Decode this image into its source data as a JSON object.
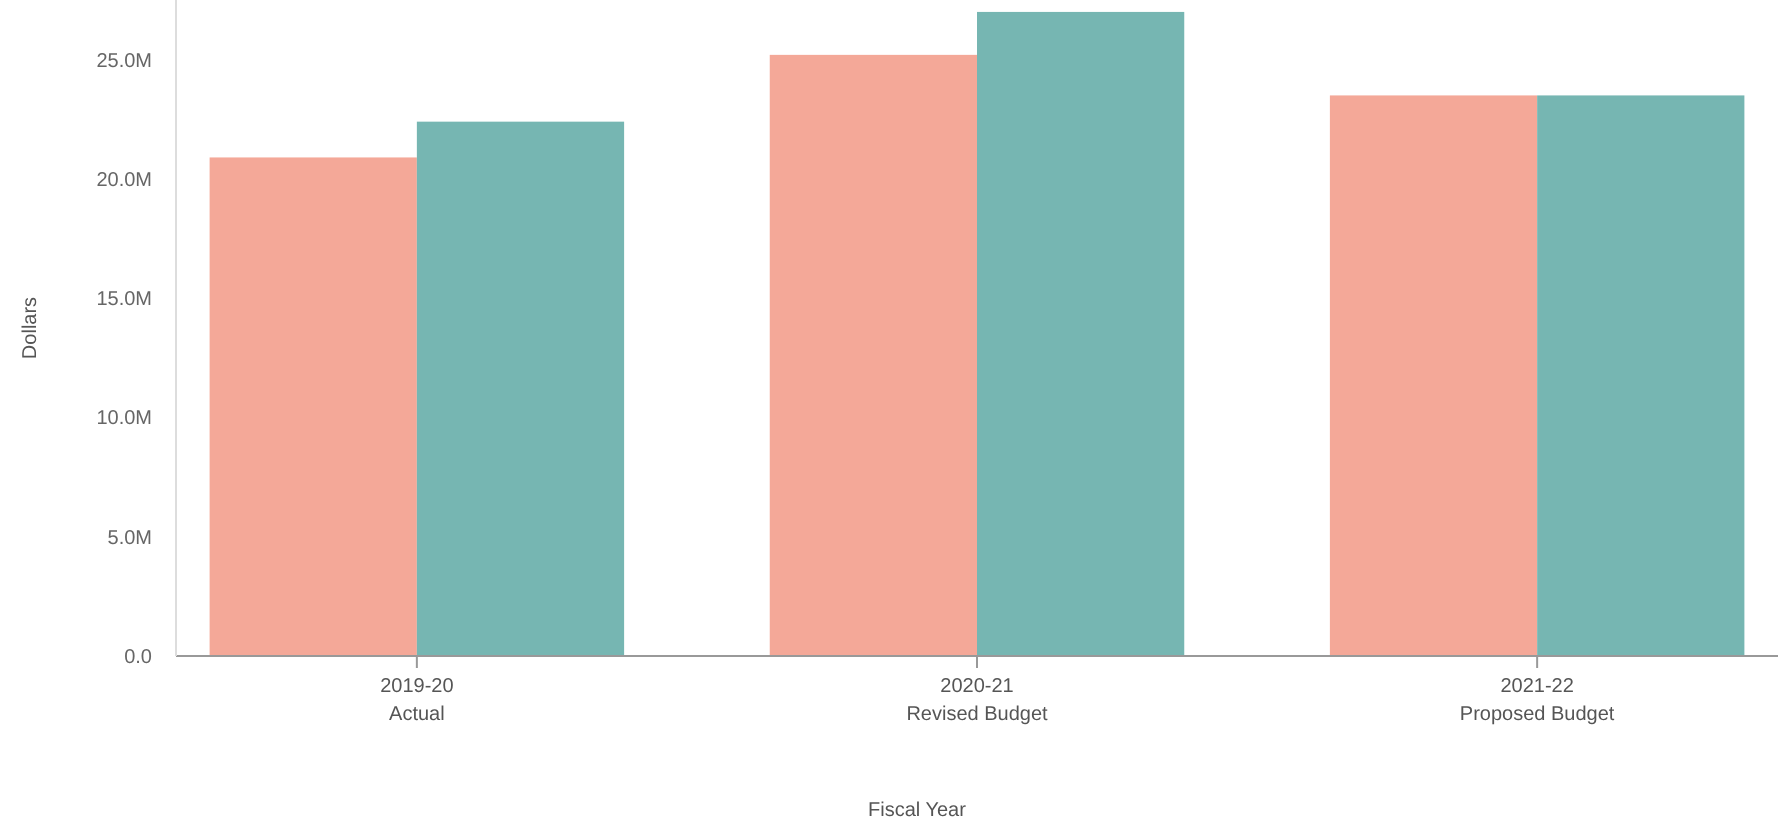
{
  "chart_data": {
    "type": "bar",
    "xlabel": "Fiscal Year",
    "ylabel": "Dollars",
    "categories": [
      "2019-20\nActual",
      "2020-21\nRevised Budget",
      "2021-22\nProposed Budget"
    ],
    "series": [
      {
        "color": "#f4a898",
        "values": [
          20.9,
          25.2,
          23.5
        ]
      },
      {
        "color": "#76b6b2",
        "values": [
          22.4,
          27.0,
          23.5
        ]
      }
    ],
    "ylim": [
      0,
      27.5
    ],
    "yticks": [
      {
        "value": 0,
        "label": "0.0"
      },
      {
        "value": 5,
        "label": "5.0M"
      },
      {
        "value": 10,
        "label": "10.0M"
      },
      {
        "value": 15,
        "label": "15.0M"
      },
      {
        "value": 20,
        "label": "20.0M"
      },
      {
        "value": 25,
        "label": "25.0M"
      }
    ],
    "grid": false
  }
}
